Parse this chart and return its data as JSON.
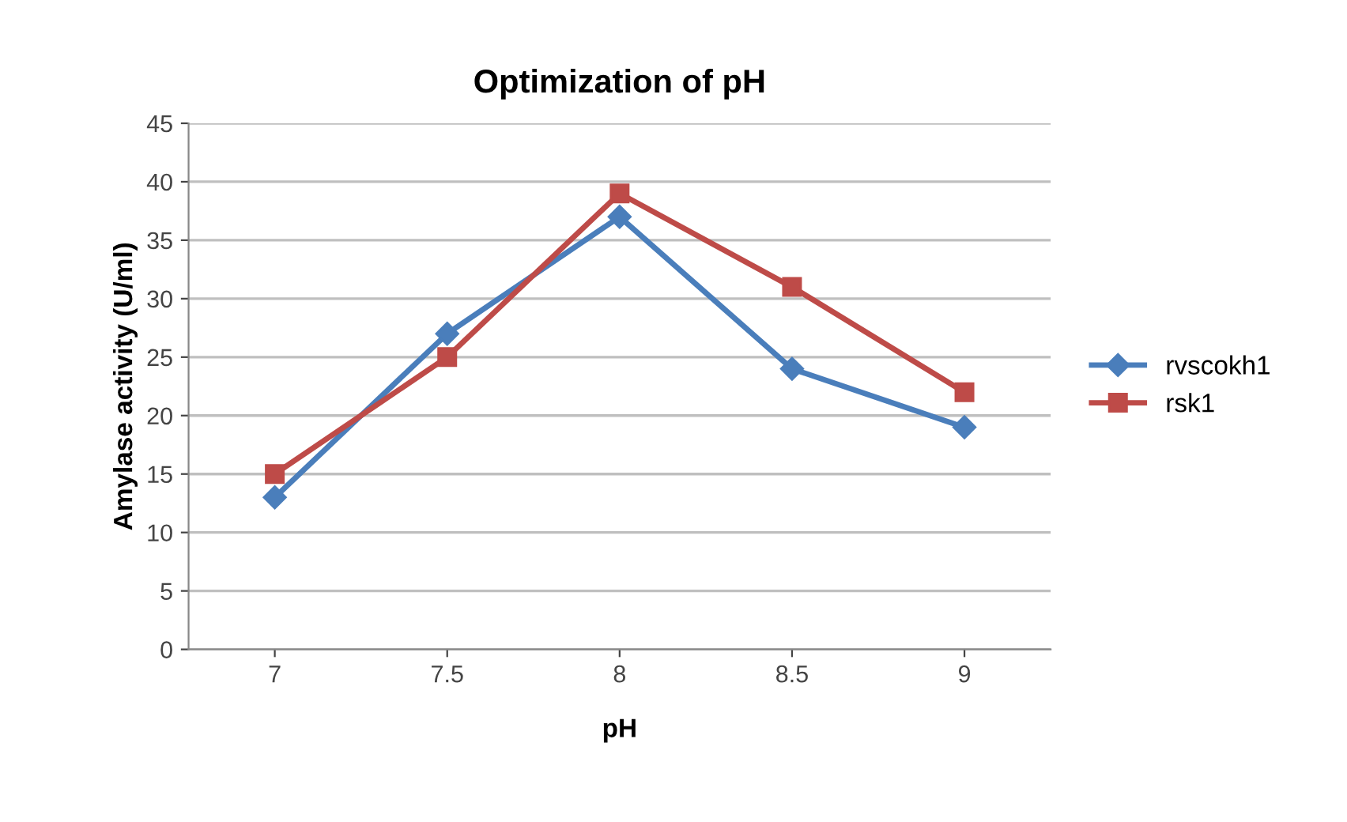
{
  "chart_data": {
    "type": "line",
    "title": "Optimization of pH",
    "xlabel": "pH",
    "ylabel": "Amylase activity (U/ml)",
    "categories": [
      "7",
      "7.5",
      "8",
      "8.5",
      "9"
    ],
    "series": [
      {
        "name": "rvscokh1",
        "color": "#4a7ebb",
        "marker": "diamond",
        "values": [
          13,
          27,
          37,
          24,
          19
        ]
      },
      {
        "name": "rsk1",
        "color": "#be4b48",
        "marker": "square",
        "values": [
          15,
          25,
          39,
          31,
          22
        ]
      }
    ],
    "ylim": [
      0,
      45
    ],
    "yticks": [
      0,
      5,
      10,
      15,
      20,
      25,
      30,
      35,
      40,
      45
    ],
    "grid": "y",
    "legend": "right"
  }
}
